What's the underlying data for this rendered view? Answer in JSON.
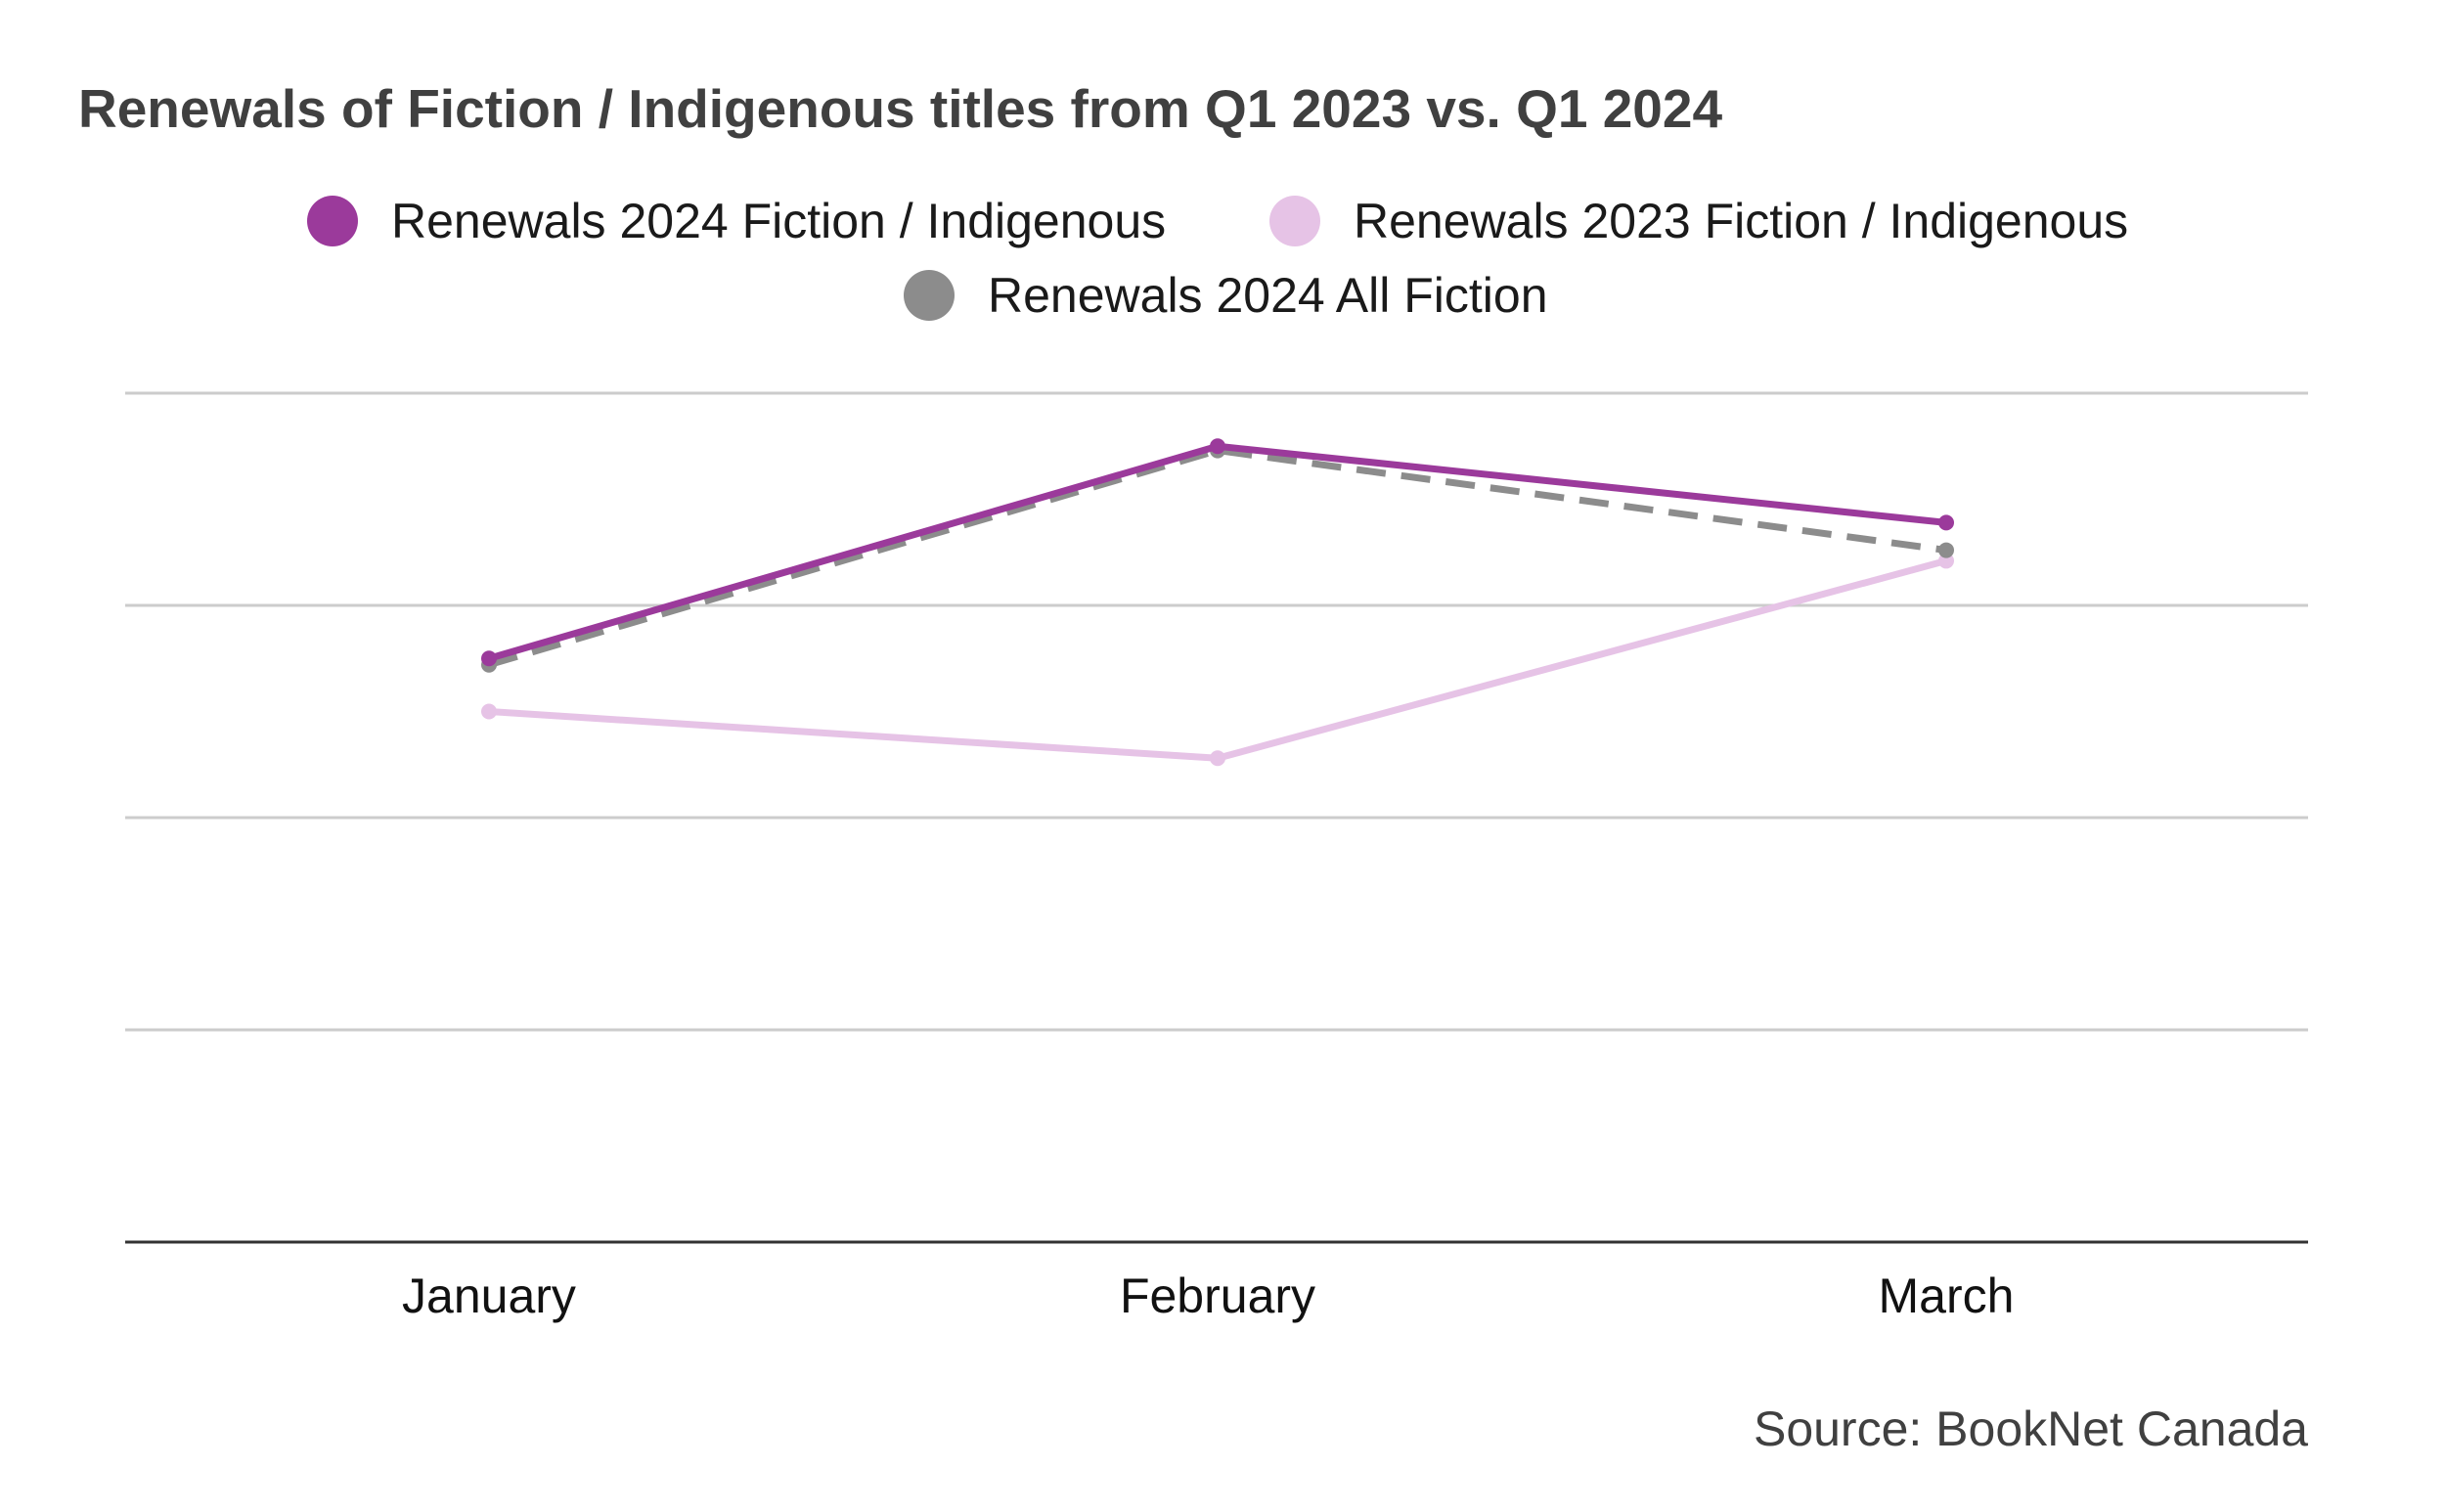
{
  "chart_data": {
    "type": "line",
    "title": "Renewals of Fiction / Indigenous titles from Q1 2023 vs. Q1 2024",
    "xlabel": "",
    "ylabel": "",
    "categories": [
      "January",
      "February",
      "March"
    ],
    "ylim": [
      0,
      4
    ],
    "grid": true,
    "legend_position": "top-center",
    "series": [
      {
        "name": "Renewals 2024 Fiction / Indigenous",
        "values": [
          2.75,
          3.75,
          3.39
        ],
        "color": "#9B3A9B",
        "line_style": "solid"
      },
      {
        "name": "Renewals 2023 Fiction / Indigenous",
        "values": [
          2.5,
          2.28,
          3.21
        ],
        "color": "#E6C3E6",
        "line_style": "solid"
      },
      {
        "name": "Renewals 2024 All Fiction",
        "values": [
          2.72,
          3.73,
          3.26
        ],
        "color": "#8C8C8C",
        "line_style": "dashed"
      }
    ],
    "source": "Source: BookNet Canada"
  }
}
